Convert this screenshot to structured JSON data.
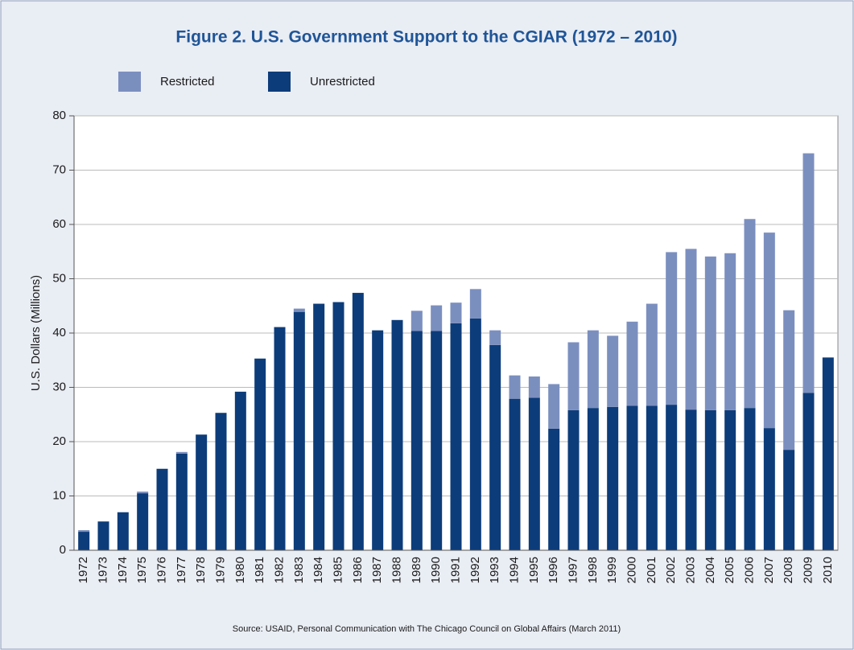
{
  "chart_data": {
    "type": "stacked_bar",
    "title": "Figure 2. U.S. Government Support to the CGIAR (1972 – 2010)",
    "y_label": "U.S. Dollars (Millions)",
    "source": "Source: USAID, Personal Communication with The Chicago Council on Global Affairs (March 2011)",
    "categories": [
      "1972",
      "1973",
      "1974",
      "1975",
      "1976",
      "1977",
      "1978",
      "1979",
      "1980",
      "1981",
      "1982",
      "1983",
      "1984",
      "1985",
      "1986",
      "1987",
      "1988",
      "1989",
      "1990",
      "1991",
      "1992",
      "1993",
      "1994",
      "1995",
      "1996",
      "1997",
      "1998",
      "1999",
      "2000",
      "2001",
      "2002",
      "2003",
      "2004",
      "2005",
      "2006",
      "2007",
      "2008",
      "2009",
      "2010"
    ],
    "series": [
      {
        "name": "Restricted",
        "color": "#7b8fbf",
        "values": [
          0.3,
          0,
          0,
          0.3,
          0,
          0.3,
          0,
          0,
          0,
          0,
          0,
          0.6,
          0,
          0,
          0,
          0,
          0,
          3.7,
          4.7,
          3.8,
          5.4,
          2.7,
          4.3,
          3.9,
          8.2,
          12.5,
          14.3,
          13.1,
          15.5,
          18.8,
          28.1,
          29.6,
          28.3,
          28.9,
          34.8,
          36.0,
          25.7,
          44.1,
          0
        ]
      },
      {
        "name": "Unrestricted",
        "color": "#0d3c7a",
        "values": [
          3.4,
          5.3,
          7.0,
          10.5,
          15.0,
          17.8,
          21.3,
          25.3,
          29.2,
          35.3,
          41.1,
          43.9,
          45.4,
          45.7,
          47.4,
          40.5,
          42.4,
          40.4,
          40.4,
          41.8,
          42.7,
          37.8,
          27.9,
          28.1,
          22.4,
          25.8,
          26.2,
          26.4,
          26.6,
          26.6,
          26.8,
          25.9,
          25.8,
          25.8,
          26.2,
          22.5,
          18.5,
          29.0,
          35.5
        ]
      }
    ],
    "ylim": [
      0,
      80
    ],
    "yticks": [
      0,
      10,
      20,
      30,
      40,
      50,
      60,
      70,
      80
    ],
    "grid": true
  }
}
